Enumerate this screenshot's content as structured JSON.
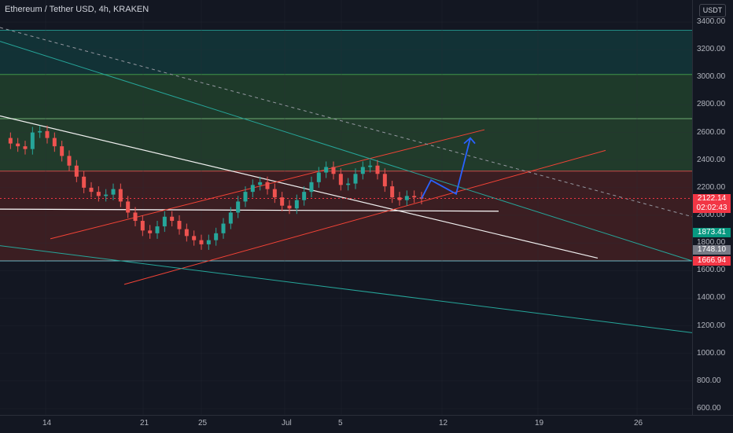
{
  "header": {
    "symbol_title": "Ethereum / Tether USD, 4h, KRAKEN"
  },
  "currency_label": "USDT",
  "chart_data": {
    "type": "candlestick",
    "y_ticks": [
      "3400.00",
      "3200.00",
      "3000.00",
      "2800.00",
      "2600.00",
      "2400.00",
      "2200.00",
      "2000.00",
      "1800.00",
      "1600.00",
      "1400.00",
      "1200.00",
      "1000.00",
      "800.00",
      "600.00"
    ],
    "x_ticks": [
      "14",
      "21",
      "25",
      "Jul",
      "5",
      "12",
      "19",
      "26"
    ],
    "price_badges": [
      {
        "label": "2122.14",
        "sub": "02:02:43",
        "color": "#f23645"
      },
      {
        "label": "1873.41",
        "color": "#089981"
      },
      {
        "label": "1748.10",
        "color": "#787b86"
      },
      {
        "label": "1666.94",
        "color": "#f23645"
      }
    ],
    "zones": [
      {
        "from": 2700,
        "to": 3020,
        "color": "#1e3a2a"
      },
      {
        "from": 3020,
        "to": 3340,
        "color": "#123236"
      },
      {
        "from": 2320,
        "to": 2700,
        "color": "#213b2b"
      },
      {
        "from": 1670,
        "to": 2320,
        "color": "#3b1e22"
      }
    ],
    "last_price": 2122.14,
    "colors": {
      "up": "#26a69a",
      "down": "#ef5350",
      "projection": "#2962ff"
    }
  }
}
